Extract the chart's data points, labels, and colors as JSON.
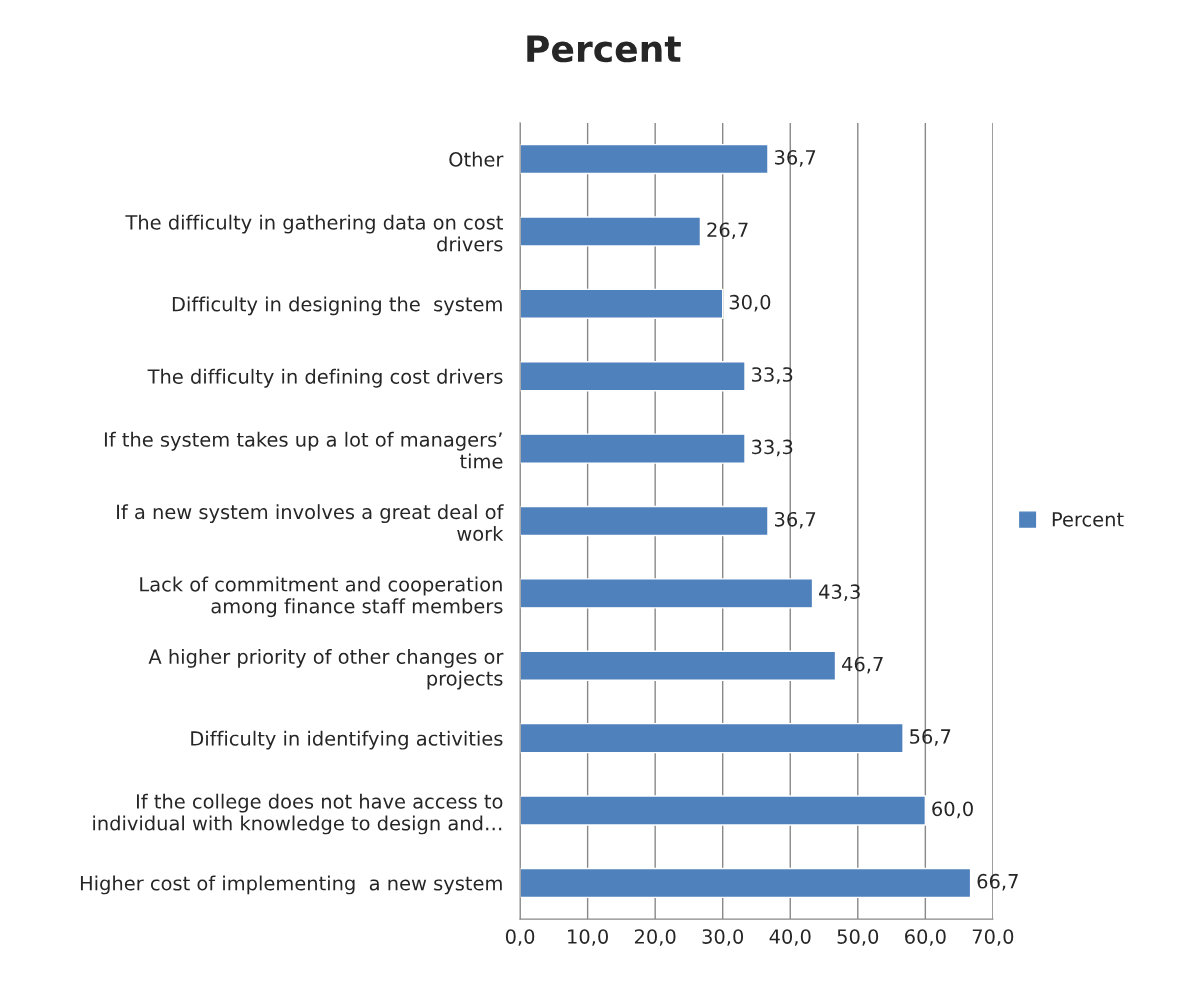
{
  "chart_data": {
    "type": "bar",
    "orientation": "horizontal",
    "title": "Percent",
    "categories": [
      "Other",
      "The difficulty in gathering data on cost\ndrivers",
      "Difficulty in designing the  system",
      "The difficulty in defining cost drivers",
      "If the system takes up a lot of managers’\ntime",
      "If a new system involves a great deal of\nwork",
      "Lack of commitment and cooperation\namong finance staff members",
      "A higher priority of other changes or\nprojects",
      "Difficulty in identifying activities",
      "If the college does not have access to\nindividual with knowledge to design and…",
      "Higher cost of implementing  a new system"
    ],
    "series": [
      {
        "name": "Percent",
        "color": "#4f81bd",
        "values": [
          36.7,
          26.7,
          30.0,
          33.3,
          33.3,
          36.7,
          43.3,
          46.7,
          56.7,
          60.0,
          66.7
        ],
        "value_labels": [
          "36,7",
          "26,7",
          "30,0",
          "33,3",
          "33,3",
          "36,7",
          "43,3",
          "46,7",
          "56,7",
          "60,0",
          "66,7"
        ]
      }
    ],
    "xlim": [
      0,
      70
    ],
    "xticks": [
      {
        "value": 0,
        "label": "0,0"
      },
      {
        "value": 10,
        "label": "10,0"
      },
      {
        "value": 20,
        "label": "20,0"
      },
      {
        "value": 30,
        "label": "30,0"
      },
      {
        "value": 40,
        "label": "40,0"
      },
      {
        "value": 50,
        "label": "50,0"
      },
      {
        "value": 60,
        "label": "60,0"
      },
      {
        "value": 70,
        "label": "70,0"
      }
    ],
    "grid": "x",
    "legend": "right"
  }
}
